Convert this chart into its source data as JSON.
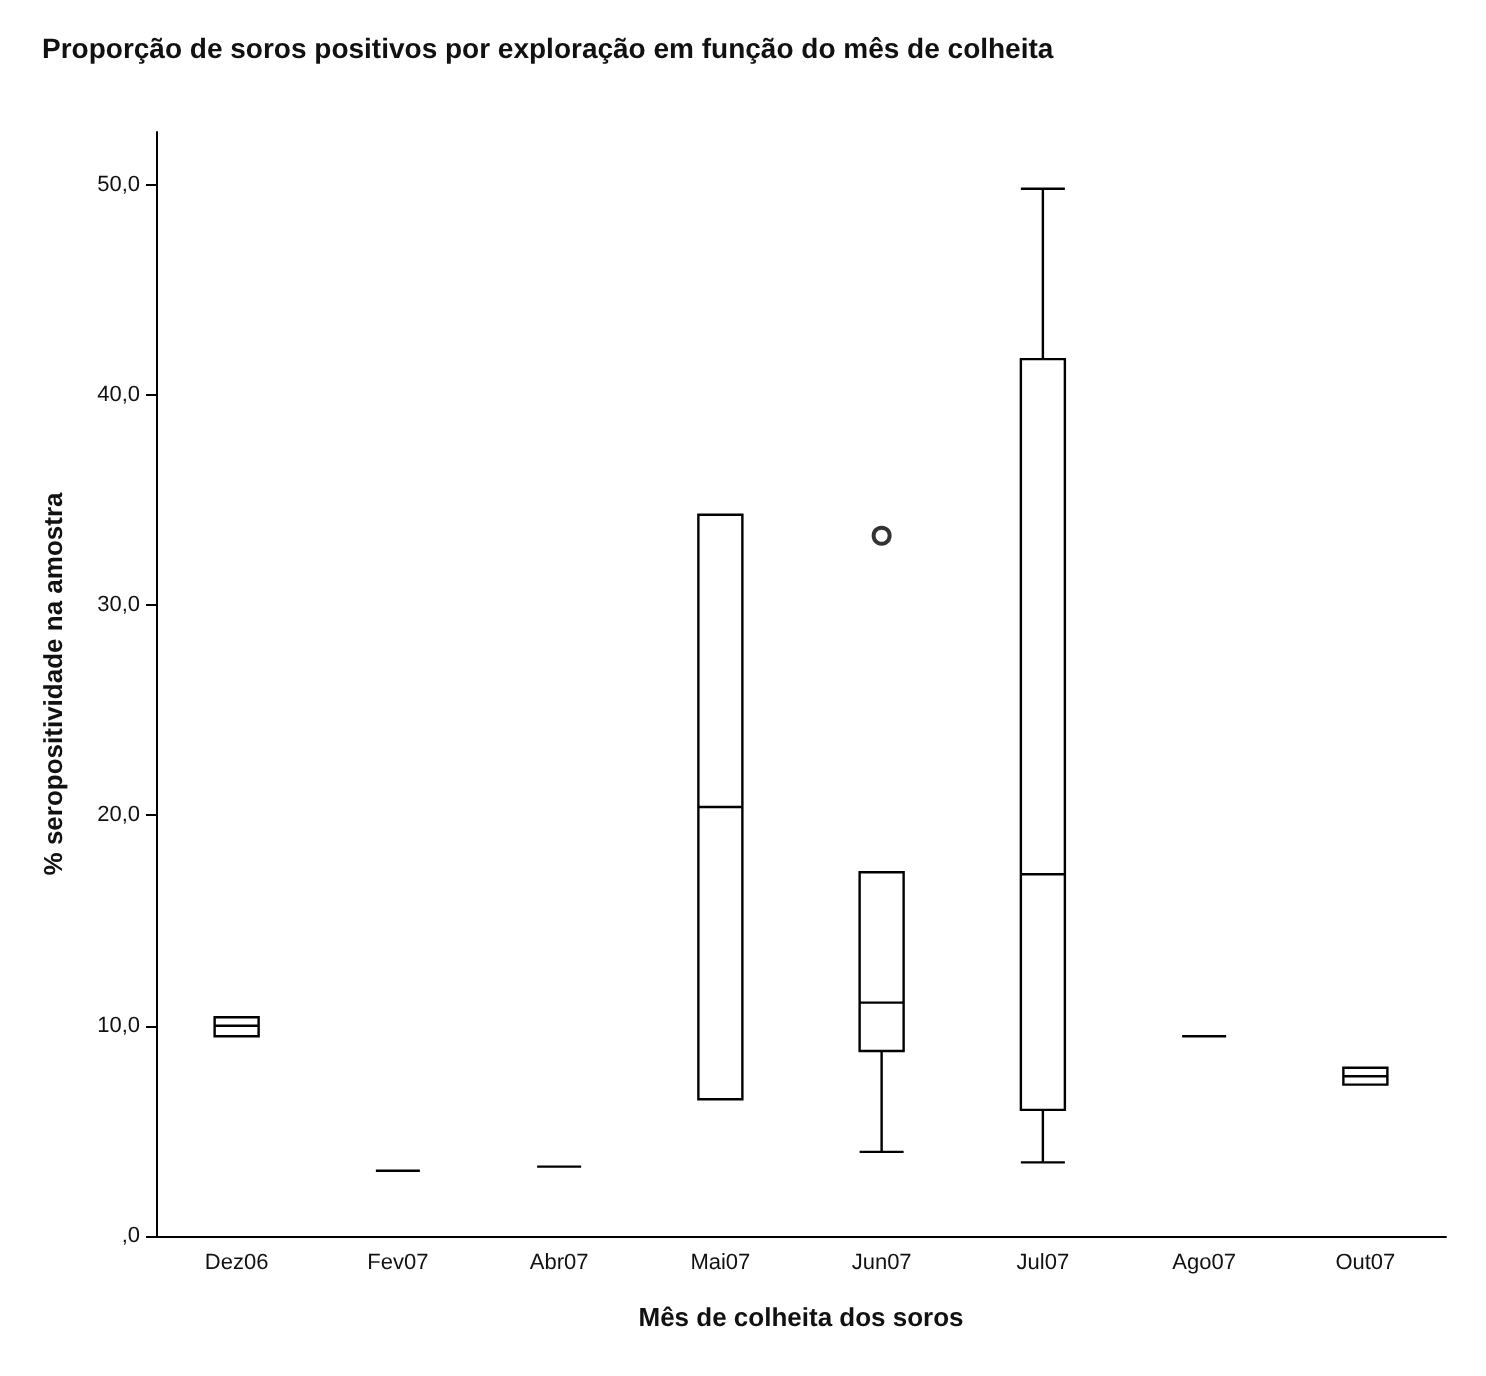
{
  "chart_data": {
    "type": "box",
    "title": "Proporção de soros positivos por exploração em função do mês de colheita",
    "xlabel": "Mês de colheita dos soros",
    "ylabel": "% seropositividade na amostra",
    "categories": [
      "Dez06",
      "Fev07",
      "Abr07",
      "Mai07",
      "Jun07",
      "Jul07",
      "Ago07",
      "Out07"
    ],
    "boxes": [
      {
        "low": 9.5,
        "q1": 9.5,
        "median": 10.0,
        "q3": 10.4,
        "high": 10.4
      },
      {
        "low": 3.1,
        "q1": 3.1,
        "median": 3.1,
        "q3": 3.1,
        "high": 3.1
      },
      {
        "low": 3.3,
        "q1": 3.3,
        "median": 3.3,
        "q3": 3.3,
        "high": 3.3
      },
      {
        "low": 6.5,
        "q1": 6.5,
        "median": 20.4,
        "q3": 34.3,
        "high": 34.3
      },
      {
        "low": 4.0,
        "q1": 8.8,
        "median": 11.1,
        "q3": 17.3,
        "high": 17.3,
        "outliers": [
          33.3
        ]
      },
      {
        "low": 3.5,
        "q1": 6.0,
        "median": 17.2,
        "q3": 41.7,
        "high": 49.8
      },
      {
        "low": 9.5,
        "q1": 9.5,
        "median": 9.5,
        "q3": 9.5,
        "high": 9.5
      },
      {
        "low": 7.2,
        "q1": 7.2,
        "median": 7.6,
        "q3": 8.0,
        "high": 8.0
      }
    ],
    "color": "#000000",
    "ylim": [
      0,
      52.5
    ],
    "yticks": [
      {
        "value": 0,
        "label": ",0"
      },
      {
        "value": 10,
        "label": "10,0"
      },
      {
        "value": 20,
        "label": "20,0"
      },
      {
        "value": 30,
        "label": "30,0"
      },
      {
        "value": 40,
        "label": "40,0"
      },
      {
        "value": 50,
        "label": "50,0"
      }
    ],
    "grid": false
  }
}
